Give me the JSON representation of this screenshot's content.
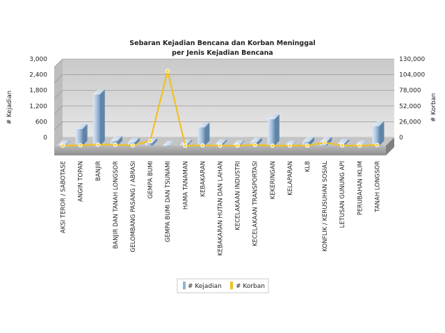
{
  "chart_data": {
    "type": "bar",
    "title": "Sebaran Kejadian Bencana dan Korban Meninggal",
    "subtitle": "per Jenis Kejadian Bencana",
    "ylabel": "# Kejadian",
    "y2label": "# Korban",
    "ylim": [
      0,
      3000
    ],
    "y2lim": [
      0,
      130000
    ],
    "yticks": [
      "0",
      "600",
      "1,200",
      "1,800",
      "2,400",
      "3,000"
    ],
    "y2ticks": [
      "0",
      "26,000",
      "52,000",
      "78,000",
      "104,000",
      "130,000"
    ],
    "grid": true,
    "legend_position": "bottom",
    "categories": [
      "AKSI TEROR / SABOTASE",
      "ANGIN TOPAN",
      "BANJIR",
      "BANJIR DAN TANAH LONGSOR",
      "GELOMBANG PASANG / ABRASI",
      "GEMPA BUMI",
      "GEMPA BUMI DAN TSUNAMI",
      "HAMA TANAMAN",
      "KEBAKARAN",
      "KEBAKARAN HUTAN DAN LAHAN",
      "KECELAKAAN INDUSTRI",
      "KECELAKAAN TRANSPORTASI",
      "KEKERINGAN",
      "KELAPARAN",
      "KLB",
      "KONFLIK / KERUSUHAN SOSIAL",
      "LETUSAN GUNUNG API",
      "PERUBAHAN IKLIM",
      "TANAH LONGSOR"
    ],
    "series": [
      {
        "name": "# Kejadian",
        "type": "bar",
        "axis": "left",
        "color": "#8fb3d3",
        "values": [
          20,
          640,
          1960,
          180,
          120,
          100,
          5,
          50,
          700,
          60,
          30,
          130,
          1010,
          10,
          150,
          150,
          70,
          10,
          750
        ]
      },
      {
        "name": "# Korban",
        "type": "line",
        "axis": "right",
        "color": "#f0c020",
        "values": [
          50,
          700,
          1800,
          1500,
          500,
          8000,
          124000,
          10,
          500,
          150,
          100,
          1400,
          10,
          150,
          200,
          5000,
          500,
          10,
          1200
        ]
      }
    ]
  }
}
